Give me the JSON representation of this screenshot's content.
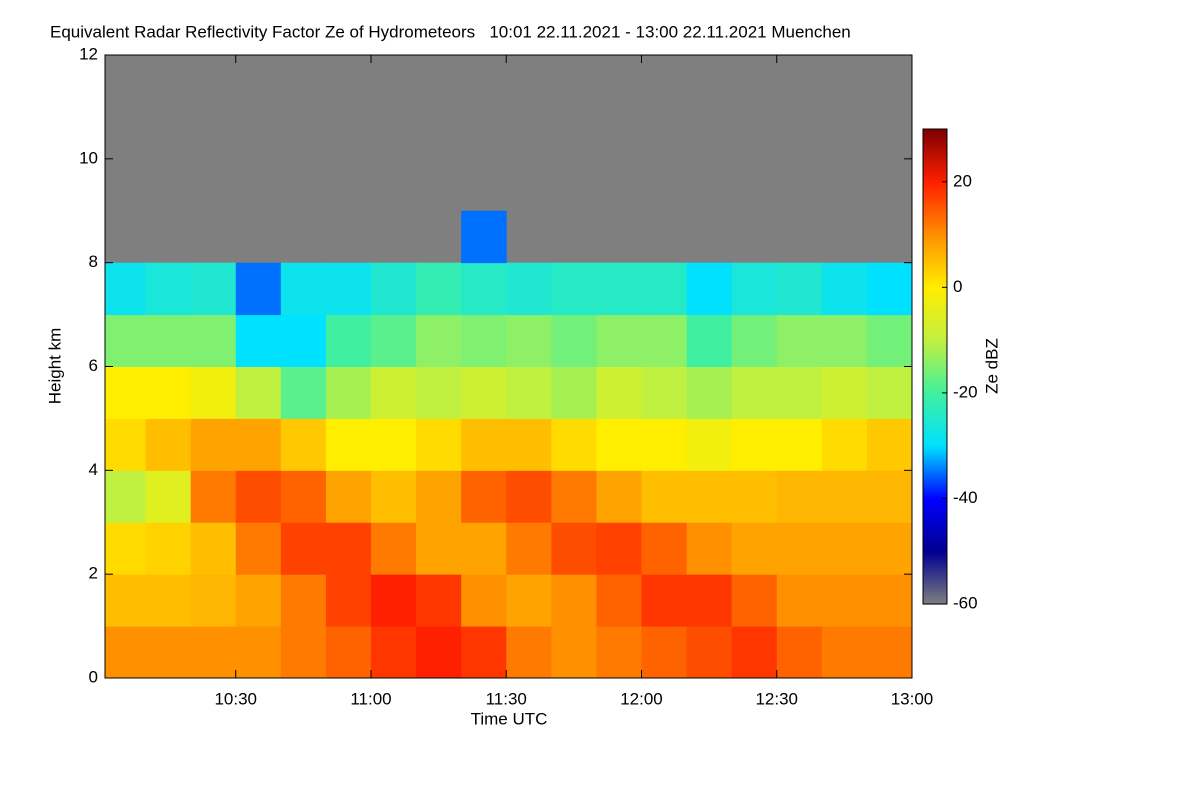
{
  "chart_data": {
    "type": "heatmap",
    "title": "Equivalent Radar Reflectivity Factor Ze of Hydrometeors   10:01 22.11.2021 - 13:00 22.11.2021 Muenchen",
    "x_label": "Time UTC",
    "y_label": "Height km",
    "colorbar_label": "Ze dBZ",
    "x": [
      601,
      610,
      620,
      630,
      640,
      650,
      660,
      670,
      680,
      690,
      700,
      710,
      720,
      730,
      740,
      750,
      760,
      770,
      780
    ],
    "y": [
      0,
      1,
      2,
      3,
      4,
      5,
      6,
      7,
      8,
      9
    ],
    "z": [
      [
        10,
        10,
        10,
        10,
        12,
        14,
        18,
        20,
        18,
        12,
        10,
        12,
        14,
        16,
        18,
        14,
        12,
        12
      ],
      [
        5,
        5,
        6,
        8,
        12,
        17,
        20,
        18,
        10,
        8,
        10,
        14,
        18,
        18,
        14,
        10,
        10,
        10
      ],
      [
        2,
        3,
        5,
        12,
        17,
        17,
        12,
        8,
        8,
        12,
        16,
        17,
        14,
        10,
        8,
        8,
        8,
        8
      ],
      [
        -10,
        -5,
        12,
        16,
        14,
        8,
        5,
        8,
        14,
        16,
        12,
        8,
        5,
        5,
        5,
        6,
        6,
        6
      ],
      [
        2,
        5,
        8,
        8,
        4,
        0,
        0,
        2,
        5,
        5,
        2,
        0,
        0,
        -2,
        0,
        0,
        2,
        4
      ],
      [
        0,
        0,
        -2,
        -10,
        -18,
        -12,
        -8,
        -10,
        -8,
        -10,
        -12,
        -8,
        -10,
        -12,
        -10,
        -10,
        -8,
        -10
      ],
      [
        -15,
        -15,
        -15,
        -30,
        -30,
        -20,
        -18,
        -14,
        -15,
        -14,
        -16,
        -14,
        -14,
        -20,
        -16,
        -14,
        -14,
        -16
      ],
      [
        -28,
        -26,
        -25,
        -35,
        -28,
        -28,
        -25,
        -22,
        -24,
        -25,
        -24,
        -24,
        -24,
        -30,
        -26,
        -25,
        -28,
        -30
      ],
      [
        null,
        null,
        null,
        null,
        null,
        null,
        null,
        null,
        -35,
        null,
        null,
        null,
        null,
        null,
        null,
        null,
        null,
        null
      ]
    ],
    "xlim": [
      601,
      780
    ],
    "xticks": [
      {
        "value": 630,
        "label": "10:30"
      },
      {
        "value": 660,
        "label": "11:00"
      },
      {
        "value": 690,
        "label": "11:30"
      },
      {
        "value": 720,
        "label": "12:00"
      },
      {
        "value": 750,
        "label": "12:30"
      },
      {
        "value": 780,
        "label": "13:00"
      }
    ],
    "ylim": [
      0,
      12
    ],
    "yticks": [
      0,
      2,
      4,
      6,
      8,
      10,
      12
    ],
    "zlim": [
      -60,
      30
    ],
    "zticks": [
      -60,
      -40,
      -20,
      0,
      20
    ],
    "colormap": [
      "#808080",
      "#000090",
      "#0000ff",
      "#00e0ff",
      "#40f0a0",
      "#c0f040",
      "#ffee00",
      "#ff9000",
      "#ff2000",
      "#800000"
    ],
    "missing_color": "#7f7f7f"
  }
}
